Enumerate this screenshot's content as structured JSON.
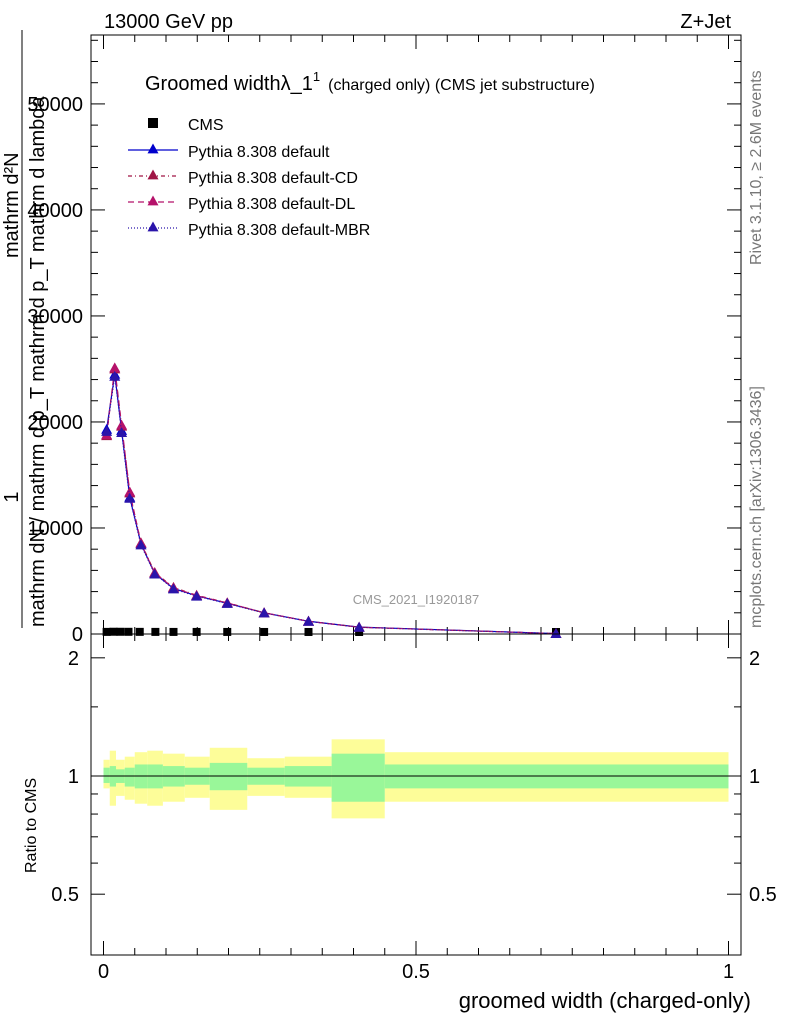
{
  "header": {
    "left": "13000 GeV pp",
    "right": "Z+Jet"
  },
  "side": {
    "rivet": "Rivet 3.1.10, ≥ 2.6M events",
    "mcplots": "mcplots.cern.ch [arXiv:1306.3436]"
  },
  "watermark": "CMS_2021_I1920187",
  "title": {
    "main": "Groomed widthλ_1",
    "sup": "1",
    "rest": "(charged only) (CMS jet substructure)"
  },
  "ylabel": {
    "one": "1",
    "den": "mathrm dN / mathrm d p_T mathrm d p_T mathrm d lambda",
    "top": "mathrm d²N"
  },
  "ratio_ylabel": "Ratio to CMS",
  "xlabel": "groomed width (charged-only)",
  "colors": {
    "default": "#0000cc",
    "cd": "#a01545",
    "dl": "#b5126a",
    "mbr": "#2a14aa",
    "band_inner": "#99f799",
    "band_outer": "#fdfd99"
  },
  "chart_data": [
    {
      "type": "line",
      "title": "Groomed widthλ_1 1 (charged only) (CMS jet substructure)",
      "xlabel": "groomed width (charged-only)",
      "ylabel": "1 / mathrm dN / mathrm d p_T mathrm d p_T mathrm d lambda mathrm d²N",
      "xlim": [
        -0.02,
        1.02
      ],
      "ylim": [
        0,
        56500
      ],
      "yticks": [
        0,
        10000,
        20000,
        30000,
        40000,
        50000
      ],
      "yticklabels": [
        "0",
        "10000",
        "20000",
        "30000",
        "40000",
        "50000"
      ],
      "legend": "top-left",
      "series": [
        {
          "name": "CMS",
          "marker": "square",
          "x": [
            0.005,
            0.016,
            0.027,
            0.04,
            0.058,
            0.083,
            0.112,
            0.149,
            0.198,
            0.257,
            0.328,
            0.409,
            0.724
          ],
          "y": [
            10,
            25,
            22,
            18,
            13,
            9,
            7,
            6,
            5,
            3,
            2,
            1,
            0.1
          ]
        },
        {
          "name": "Pythia 8.308 default",
          "marker": "triangle",
          "x": [
            0.005,
            0.018,
            0.029,
            0.042,
            0.06,
            0.082,
            0.112,
            0.149,
            0.198,
            0.257,
            0.328,
            0.409,
            0.724
          ],
          "y": [
            19300,
            24500,
            19200,
            12900,
            8500,
            5700,
            4300,
            3600,
            2900,
            2000,
            1200,
            650,
            40
          ]
        },
        {
          "name": "Pythia 8.308 default-CD",
          "marker": "triangle",
          "x": [
            0.005,
            0.018,
            0.029,
            0.042,
            0.06,
            0.082,
            0.112,
            0.149,
            0.198,
            0.257,
            0.328,
            0.409,
            0.724
          ],
          "y": [
            18700,
            25000,
            19600,
            13300,
            8600,
            5800,
            4400,
            3650,
            2950,
            2000,
            1200,
            640,
            40
          ]
        },
        {
          "name": "Pythia 8.308 default-DL",
          "marker": "triangle",
          "x": [
            0.005,
            0.018,
            0.029,
            0.042,
            0.06,
            0.082,
            0.112,
            0.149,
            0.198,
            0.257,
            0.328,
            0.409,
            0.724
          ],
          "y": [
            18800,
            25100,
            19700,
            13400,
            8550,
            5750,
            4350,
            3620,
            2930,
            2000,
            1200,
            640,
            40
          ]
        },
        {
          "name": "Pythia 8.308 default-MBR",
          "marker": "triangle",
          "x": [
            0.005,
            0.018,
            0.029,
            0.042,
            0.06,
            0.082,
            0.112,
            0.149,
            0.198,
            0.257,
            0.328,
            0.409,
            0.724
          ],
          "y": [
            19100,
            24300,
            19000,
            12800,
            8400,
            5650,
            4250,
            3560,
            2880,
            1980,
            1190,
            630,
            38
          ]
        }
      ]
    },
    {
      "type": "area",
      "ylabel": "Ratio to CMS",
      "xlabel": "groomed width (charged-only)",
      "xlim": [
        -0.02,
        1.02
      ],
      "ylim": [
        0.35,
        2.3
      ],
      "yticks": [
        0.5,
        1,
        2
      ],
      "yticklabels": [
        "0.5",
        "1",
        "2"
      ],
      "xticks": [
        0,
        0.5,
        1
      ],
      "xticklabels": [
        "0",
        "0.5",
        "1"
      ],
      "bins": [
        {
          "x0": 0.0,
          "x1": 0.01,
          "inner_lo": 0.96,
          "inner_hi": 1.05,
          "outer_lo": 0.93,
          "outer_hi": 1.1
        },
        {
          "x0": 0.01,
          "x1": 0.02,
          "inner_lo": 0.94,
          "inner_hi": 1.06,
          "outer_lo": 0.84,
          "outer_hi": 1.16
        },
        {
          "x0": 0.02,
          "x1": 0.034,
          "inner_lo": 0.96,
          "inner_hi": 1.04,
          "outer_lo": 0.89,
          "outer_hi": 1.1
        },
        {
          "x0": 0.034,
          "x1": 0.05,
          "inner_lo": 0.94,
          "inner_hi": 1.05,
          "outer_lo": 0.87,
          "outer_hi": 1.12
        },
        {
          "x0": 0.05,
          "x1": 0.07,
          "inner_lo": 0.93,
          "inner_hi": 1.07,
          "outer_lo": 0.85,
          "outer_hi": 1.15
        },
        {
          "x0": 0.07,
          "x1": 0.095,
          "inner_lo": 0.93,
          "inner_hi": 1.07,
          "outer_lo": 0.84,
          "outer_hi": 1.16
        },
        {
          "x0": 0.095,
          "x1": 0.13,
          "inner_lo": 0.94,
          "inner_hi": 1.06,
          "outer_lo": 0.86,
          "outer_hi": 1.14
        },
        {
          "x0": 0.13,
          "x1": 0.17,
          "inner_lo": 0.95,
          "inner_hi": 1.05,
          "outer_lo": 0.88,
          "outer_hi": 1.12
        },
        {
          "x0": 0.17,
          "x1": 0.23,
          "inner_lo": 0.92,
          "inner_hi": 1.08,
          "outer_lo": 0.82,
          "outer_hi": 1.18
        },
        {
          "x0": 0.23,
          "x1": 0.29,
          "inner_lo": 0.95,
          "inner_hi": 1.05,
          "outer_lo": 0.89,
          "outer_hi": 1.11
        },
        {
          "x0": 0.29,
          "x1": 0.365,
          "inner_lo": 0.94,
          "inner_hi": 1.06,
          "outer_lo": 0.88,
          "outer_hi": 1.12
        },
        {
          "x0": 0.365,
          "x1": 0.45,
          "inner_lo": 0.86,
          "inner_hi": 1.14,
          "outer_lo": 0.78,
          "outer_hi": 1.24
        },
        {
          "x0": 0.45,
          "x1": 1.0,
          "inner_lo": 0.93,
          "inner_hi": 1.07,
          "outer_lo": 0.86,
          "outer_hi": 1.15
        }
      ]
    }
  ]
}
